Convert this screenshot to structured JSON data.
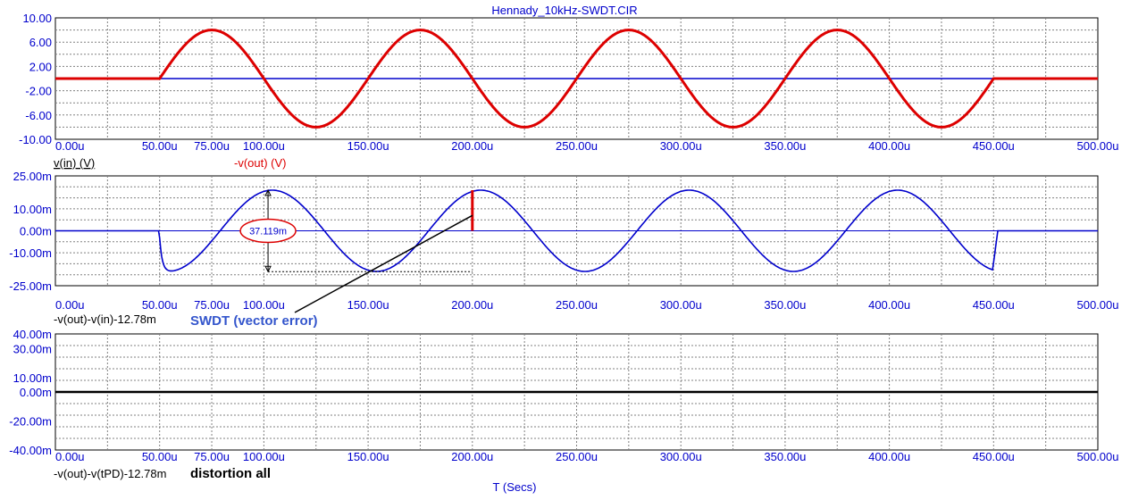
{
  "chart_data": {
    "title": "Hennady_10kHz-SWDT.CIR",
    "xlabel": "T (Secs)",
    "x_ticks": [
      "0.00u",
      "50.00u",
      "75.00u",
      "100.00u",
      "150.00u",
      "200.00u",
      "250.00u",
      "300.00u",
      "350.00u",
      "400.00u",
      "450.00u",
      "500.00u"
    ],
    "x_tick_values": [
      0,
      50,
      75,
      100,
      150,
      200,
      250,
      300,
      350,
      400,
      450,
      500
    ],
    "xlim": [
      0,
      500
    ],
    "x_unit": "us",
    "grid": true,
    "panels": [
      {
        "type": "line",
        "ylim": [
          -10,
          10
        ],
        "y_ticks": [
          "10.00",
          "6.00",
          "2.00",
          "-2.00",
          "-6.00",
          "-10.00"
        ],
        "y_tick_values": [
          10,
          6,
          2,
          -2,
          -6,
          -10
        ],
        "series": [
          {
            "name": "v(in) (V)",
            "color": "#0000cc",
            "signal": "zero",
            "t_start": 50,
            "t_end": 450
          },
          {
            "name": "-v(out) (V)",
            "color": "#dd0000",
            "signal": "sine",
            "amplitude": 8,
            "frequency_khz": 10,
            "phase": "positive-first",
            "t_start": 50,
            "t_end": 451
          }
        ]
      },
      {
        "type": "line",
        "ylim": [
          -25,
          25
        ],
        "y_ticks": [
          "25.00m",
          "10.00m",
          "0.00m",
          "-10.00m",
          "-25.00m"
        ],
        "y_tick_values": [
          25,
          10,
          0,
          -10,
          -25
        ],
        "y_unit": "m",
        "series": [
          {
            "name": "-v(out)-v(in)-12.78m",
            "color": "#0000cc",
            "signal": "error",
            "amplitude": 18.5,
            "frequency_khz": 10,
            "phase": "cos-delayed",
            "t_start": 50,
            "t_end": 452
          }
        ],
        "annotations": {
          "measure_label": "37.119m",
          "swdt_label": "SWDT (vector error)"
        }
      },
      {
        "type": "line",
        "ylim": [
          -40,
          40
        ],
        "y_ticks": [
          "40.00m",
          "30.00m",
          "10.00m",
          "0.00m",
          "-20.00m",
          "-40.00m"
        ],
        "y_tick_values": [
          40,
          30,
          10,
          0,
          -20,
          -40
        ],
        "y_unit": "m",
        "series": [
          {
            "name": "-v(out)-v(tPD)-12.78m",
            "color": "#000000",
            "signal": "zero",
            "t_start": 0,
            "t_end": 500
          }
        ],
        "annotations": {
          "note": "distortion all"
        }
      }
    ]
  }
}
